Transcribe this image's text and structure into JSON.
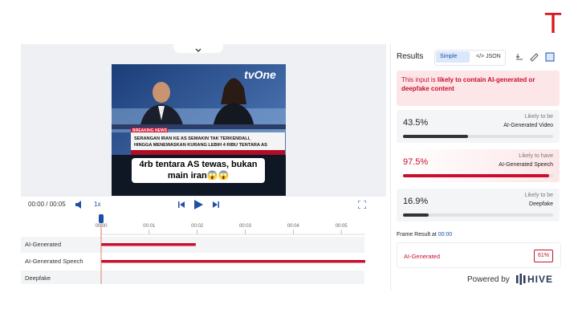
{
  "logo": "T",
  "video": {
    "channel": "tvOne",
    "tag": "BREAKING NEWS",
    "headline": [
      "SERANGAN IRAN KE AS SEMAKIN TAK TERKENDALI,",
      "HINGGA MENEWASKAN KURANG LEBIH 4 RIBU TENTARA AS"
    ],
    "caption": [
      "4rb tentara AS tewas, bukan",
      "main iran😱😱"
    ]
  },
  "player": {
    "time": "00:00 / 00:05",
    "speed": "1x"
  },
  "timeline": {
    "xlim": [
      0,
      5.5
    ],
    "position": 0,
    "ticks": [
      {
        "value": 0,
        "label": "00:00"
      },
      {
        "value": 1,
        "label": "00:01"
      },
      {
        "value": 2,
        "label": "00:02"
      },
      {
        "value": 3,
        "label": "00:03"
      },
      {
        "value": 4,
        "label": "00:04"
      },
      {
        "value": 5,
        "label": "00:05"
      }
    ],
    "rows": [
      {
        "name": "AI-Generated",
        "segments": [
          [
            0,
            1.97
          ]
        ]
      },
      {
        "name": "AI-Generated Speech",
        "segments": [
          [
            0,
            5.5
          ]
        ]
      },
      {
        "name": "Deepfake",
        "segments": []
      }
    ]
  },
  "results": {
    "title": "Results",
    "tabs": [
      "Simple",
      "</> JSON"
    ],
    "alert": [
      "This input is",
      "likely to contain AI-generated or deepfake content"
    ],
    "items": [
      {
        "value": 43.5,
        "label": "43.5%",
        "caption": [
          "Likely to be",
          "AI-Generated Video"
        ]
      },
      {
        "value": 97.5,
        "label": "97.5%",
        "caption": [
          "Likely to have",
          "AI-Generated Speech"
        ]
      },
      {
        "value": 16.9,
        "label": "16.9%",
        "caption": [
          "Likely to be",
          "Deepfake"
        ]
      }
    ]
  },
  "frame": {
    "title": "Frame Result at",
    "time": "00:00",
    "class": "AI-Generated",
    "score": "61%"
  },
  "footer": {
    "powered": "Powered by",
    "brand": "HIVE"
  }
}
